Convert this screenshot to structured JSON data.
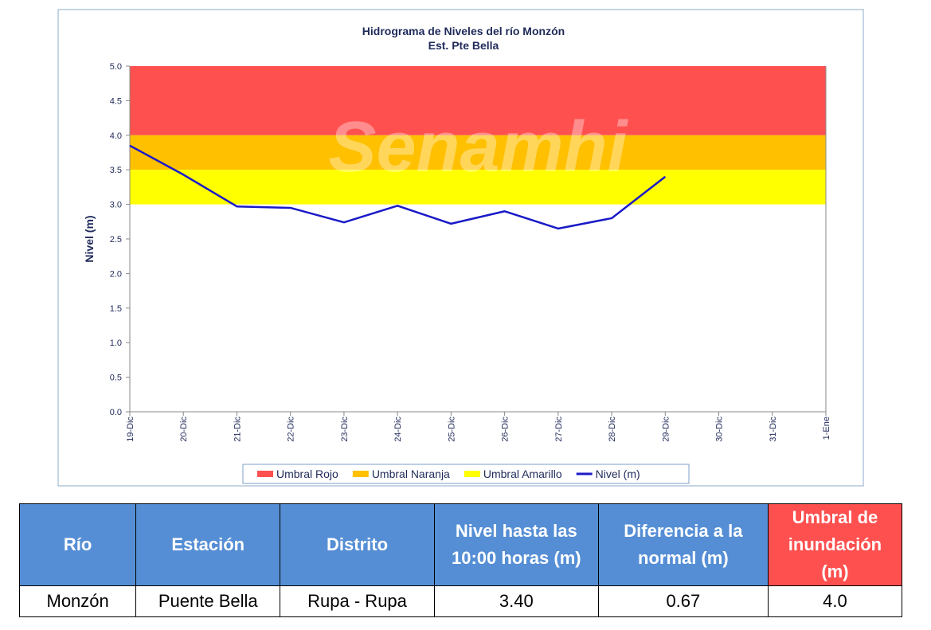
{
  "chart_data": {
    "type": "line",
    "title": "Hidrograma de Niveles del río Monzón",
    "subtitle": "Est. Pte Bella",
    "watermark": "Senamhi",
    "y_label": "Nivel (m)",
    "categories": [
      "19-Dic",
      "20-Dic",
      "21-Dic",
      "22-Dic",
      "23-Dic",
      "24-Dic",
      "25-Dic",
      "26-Dic",
      "27-Dic",
      "28-Dic",
      "29-Dic",
      "30-Dic",
      "31-Dic",
      "1-Ene"
    ],
    "thresholds": [
      {
        "name": "Umbral Rojo",
        "color": "#ff5050",
        "from": 4.0,
        "to": 5.0
      },
      {
        "name": "Umbral Naranja",
        "color": "#ffc000",
        "from": 3.5,
        "to": 4.0
      },
      {
        "name": "Umbral Amarillo",
        "color": "#ffff00",
        "from": 3.0,
        "to": 3.5
      }
    ],
    "series": [
      {
        "name": "Nivel (m)",
        "color": "#1a1ac8",
        "values": [
          3.85,
          3.43,
          2.97,
          2.95,
          2.74,
          2.98,
          2.72,
          2.9,
          2.65,
          2.8,
          3.4,
          null,
          null,
          null
        ]
      }
    ],
    "ylim": [
      0,
      5
    ],
    "yticks": [
      {
        "value": 0,
        "label": "0.0"
      },
      0.5,
      {
        "value": 1,
        "label": "1.0"
      },
      1.5,
      {
        "value": 2,
        "label": "2.0"
      },
      2.5,
      {
        "value": 3,
        "label": "3.0"
      },
      3.5,
      {
        "value": 4,
        "label": "4.0"
      },
      4.5,
      {
        "value": 5,
        "label": "5.0"
      }
    ],
    "legend": "bottom"
  },
  "table": {
    "header": [
      "Río",
      "Estación",
      "Distrito",
      "Nivel hasta las 10:00 horas (m)",
      "Diferencia a la normal (m)",
      "Umbral de inundación (m)"
    ],
    "rows": [
      [
        "Monzón",
        "Puente Bella",
        "Rupa - Rupa",
        "3.40",
        "0.67",
        "4.0"
      ]
    ]
  }
}
